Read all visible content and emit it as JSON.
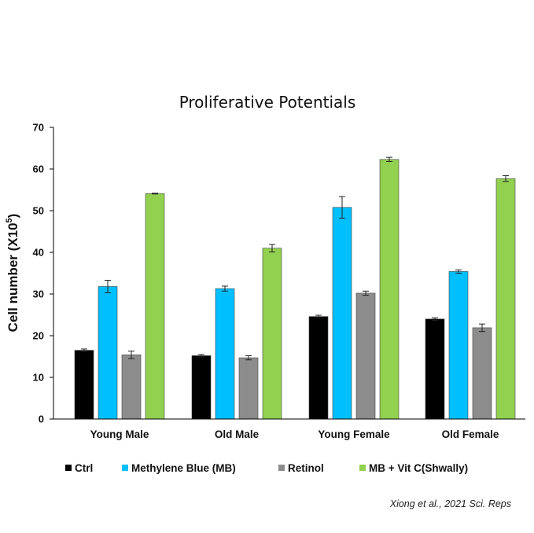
{
  "chart_data": {
    "type": "bar",
    "title": "Proliferative Potentials",
    "ylabel": "Cell number (X10",
    "ylabel_sup": "5",
    "ylabel_end": ")",
    "ylim": [
      0,
      70
    ],
    "yticks": [
      "0",
      "10",
      "20",
      "30",
      "40",
      "50",
      "60",
      "70"
    ],
    "ytick_values": [
      0,
      10,
      20,
      30,
      40,
      50,
      60,
      70
    ],
    "grid": false,
    "legend_position": "bottom",
    "categories": [
      "Young Male",
      "Old Male",
      "Young Female",
      "Old Female"
    ],
    "series": [
      {
        "name": "Ctrl",
        "color": "#000000",
        "values": [
          16.5,
          15.2,
          24.6,
          24.0
        ],
        "errors": [
          0.3,
          0.3,
          0.3,
          0.3
        ]
      },
      {
        "name": "Methylene Blue (MB)",
        "color": "#00bfff",
        "values": [
          31.8,
          31.3,
          50.8,
          35.4
        ],
        "errors": [
          1.5,
          0.6,
          2.6,
          0.4
        ]
      },
      {
        "name": "Retinol",
        "color": "#8c8c8c",
        "values": [
          15.4,
          14.7,
          30.2,
          21.9
        ],
        "errors": [
          0.9,
          0.5,
          0.5,
          0.9
        ]
      },
      {
        "name": "MB + Vit C(Shwally)",
        "color": "#92d050",
        "values": [
          54.1,
          41.0,
          62.3,
          57.7
        ],
        "errors": [
          0.1,
          0.9,
          0.5,
          0.7
        ]
      }
    ]
  },
  "citation": "Xiong et al., 2021 Sci. Reps"
}
